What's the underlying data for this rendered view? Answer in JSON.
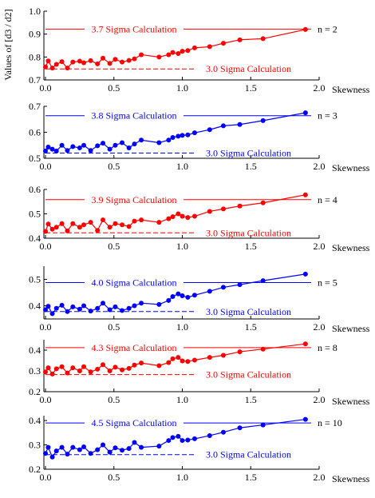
{
  "ylabel": "Values of [d3 / d2]",
  "chart_data": [
    {
      "type": "line",
      "color": "#ff0000",
      "n_label": "n = 2",
      "xlabel": "Skewness",
      "xlim": [
        0,
        2
      ],
      "ylim": [
        0.7,
        1.0
      ],
      "yticks": [
        "1.0",
        "0.9",
        "0.8",
        "0.7"
      ],
      "xticks": [
        "0.0",
        "0.5",
        "1.0",
        "1.5",
        "2.0"
      ],
      "sigma_high": {
        "label": "3.7 Sigma Calculation",
        "value": 0.922
      },
      "sigma_low": {
        "label": "3.0 Sigma Calculation",
        "value": 0.748
      },
      "series": [
        {
          "x": [
            0.0,
            0.02,
            0.05,
            0.08,
            0.12,
            0.16,
            0.2,
            0.25,
            0.28,
            0.33,
            0.38,
            0.42,
            0.47,
            0.51,
            0.56,
            0.61,
            0.65,
            0.7,
            0.83,
            0.9,
            0.93,
            0.97,
            1.0,
            1.04,
            1.09,
            1.2,
            1.3,
            1.42,
            1.59,
            1.9
          ],
          "y": [
            0.757,
            0.783,
            0.752,
            0.768,
            0.78,
            0.752,
            0.778,
            0.782,
            0.775,
            0.784,
            0.77,
            0.795,
            0.772,
            0.79,
            0.778,
            0.785,
            0.792,
            0.81,
            0.8,
            0.81,
            0.82,
            0.815,
            0.825,
            0.828,
            0.84,
            0.845,
            0.86,
            0.875,
            0.88,
            0.92
          ]
        }
      ]
    },
    {
      "type": "line",
      "color": "#0000ff",
      "n_label": "n = 3",
      "xlabel": "Skewness",
      "xlim": [
        0,
        2
      ],
      "ylim": [
        0.5,
        0.7
      ],
      "yticks": [
        "0.7",
        "0.6",
        "0.5"
      ],
      "xticks": [
        "0.0",
        "0.5",
        "1.0",
        "1.5",
        "2.0"
      ],
      "sigma_high": {
        "label": "3.8 Sigma Calculation",
        "value": 0.664
      },
      "sigma_low": {
        "label": "3.0 Sigma Calculation",
        "value": 0.52
      },
      "series": [
        {
          "x": [
            0.0,
            0.02,
            0.05,
            0.08,
            0.12,
            0.16,
            0.2,
            0.25,
            0.28,
            0.33,
            0.38,
            0.42,
            0.47,
            0.51,
            0.56,
            0.61,
            0.65,
            0.7,
            0.83,
            0.9,
            0.93,
            0.97,
            1.0,
            1.04,
            1.09,
            1.2,
            1.3,
            1.42,
            1.59,
            1.9
          ],
          "y": [
            0.528,
            0.543,
            0.535,
            0.528,
            0.55,
            0.53,
            0.545,
            0.54,
            0.55,
            0.53,
            0.548,
            0.558,
            0.535,
            0.55,
            0.56,
            0.54,
            0.555,
            0.57,
            0.56,
            0.57,
            0.58,
            0.585,
            0.588,
            0.59,
            0.598,
            0.61,
            0.625,
            0.63,
            0.645,
            0.675
          ]
        }
      ]
    },
    {
      "type": "line",
      "color": "#ff0000",
      "n_label": "n = 4",
      "xlabel": "Skewness",
      "xlim": [
        0,
        2
      ],
      "ylim": [
        0.4,
        0.6
      ],
      "yticks": [
        "0.6",
        "0.5",
        "0.4"
      ],
      "xticks": [
        "0.0",
        "0.5",
        "1.0",
        "1.5",
        "2.0"
      ],
      "sigma_high": {
        "label": "3.9 Sigma Calculation",
        "value": 0.558
      },
      "sigma_low": {
        "label": "3.0 Sigma Calculation",
        "value": 0.422
      },
      "series": [
        {
          "x": [
            0.0,
            0.02,
            0.05,
            0.08,
            0.12,
            0.16,
            0.2,
            0.25,
            0.28,
            0.33,
            0.38,
            0.42,
            0.47,
            0.51,
            0.56,
            0.61,
            0.65,
            0.7,
            0.83,
            0.9,
            0.93,
            0.97,
            1.0,
            1.04,
            1.09,
            1.2,
            1.3,
            1.42,
            1.59,
            1.9
          ],
          "y": [
            0.428,
            0.458,
            0.437,
            0.445,
            0.46,
            0.43,
            0.46,
            0.445,
            0.455,
            0.465,
            0.432,
            0.475,
            0.445,
            0.46,
            0.455,
            0.448,
            0.47,
            0.475,
            0.465,
            0.48,
            0.488,
            0.5,
            0.49,
            0.485,
            0.49,
            0.51,
            0.52,
            0.532,
            0.545,
            0.578
          ]
        }
      ]
    },
    {
      "type": "line",
      "color": "#0000ff",
      "n_label": "n = 5",
      "xlabel": "Skewness",
      "xlim": [
        0,
        2
      ],
      "ylim": [
        0.35,
        0.55
      ],
      "yticks": [
        "0.5",
        "0.4"
      ],
      "ytick_values": [
        0.5,
        0.4
      ],
      "xticks": [
        "0.0",
        "0.5",
        "1.0",
        "1.5",
        "2.0"
      ],
      "sigma_high": {
        "label": "4.0 Sigma Calculation",
        "value": 0.488
      },
      "sigma_low": {
        "label": "3.0 Sigma Calculation",
        "value": 0.378
      },
      "series": [
        {
          "x": [
            0.0,
            0.02,
            0.05,
            0.08,
            0.12,
            0.16,
            0.2,
            0.25,
            0.28,
            0.33,
            0.38,
            0.42,
            0.47,
            0.51,
            0.56,
            0.61,
            0.65,
            0.7,
            0.83,
            0.9,
            0.93,
            0.97,
            1.0,
            1.04,
            1.09,
            1.2,
            1.3,
            1.42,
            1.59,
            1.9
          ],
          "y": [
            0.385,
            0.398,
            0.37,
            0.39,
            0.402,
            0.378,
            0.396,
            0.387,
            0.4,
            0.38,
            0.39,
            0.41,
            0.385,
            0.396,
            0.382,
            0.39,
            0.4,
            0.41,
            0.405,
            0.42,
            0.435,
            0.445,
            0.438,
            0.432,
            0.44,
            0.455,
            0.47,
            0.48,
            0.495,
            0.52
          ]
        }
      ]
    },
    {
      "type": "line",
      "color": "#ff0000",
      "n_label": "n = 8",
      "xlabel": "Skewness",
      "xlim": [
        0,
        2
      ],
      "ylim": [
        0.2,
        0.45
      ],
      "yticks": [
        "0.4",
        "0.3",
        "0.2"
      ],
      "ytick_values": [
        0.4,
        0.3,
        0.2
      ],
      "xticks": [
        "0.0",
        "0.5",
        "1.0",
        "1.5",
        "2.0"
      ],
      "sigma_high": {
        "label": "4.3 Sigma Calculation",
        "value": 0.412
      },
      "sigma_low": {
        "label": "3.0 Sigma Calculation",
        "value": 0.282
      },
      "series": [
        {
          "x": [
            0.0,
            0.02,
            0.05,
            0.08,
            0.12,
            0.16,
            0.2,
            0.25,
            0.28,
            0.33,
            0.38,
            0.42,
            0.47,
            0.51,
            0.56,
            0.61,
            0.65,
            0.7,
            0.83,
            0.9,
            0.93,
            0.97,
            1.0,
            1.04,
            1.09,
            1.2,
            1.3,
            1.42,
            1.59,
            1.9
          ],
          "y": [
            0.295,
            0.315,
            0.285,
            0.31,
            0.32,
            0.29,
            0.315,
            0.3,
            0.32,
            0.295,
            0.308,
            0.33,
            0.3,
            0.318,
            0.305,
            0.312,
            0.328,
            0.338,
            0.325,
            0.34,
            0.358,
            0.365,
            0.348,
            0.345,
            0.352,
            0.365,
            0.375,
            0.392,
            0.405,
            0.43
          ]
        }
      ]
    },
    {
      "type": "line",
      "color": "#0000ff",
      "n_label": "n = 10",
      "xlabel": "Skewness",
      "xlim": [
        0,
        2
      ],
      "ylim": [
        0.2,
        0.42
      ],
      "yticks": [
        "0.4",
        "0.3",
        "0.2"
      ],
      "ytick_values": [
        0.4,
        0.3,
        0.2
      ],
      "xticks": [
        "0.0",
        "0.5",
        "1.0",
        "1.5",
        "2.0"
      ],
      "sigma_high": {
        "label": "4.5 Sigma Calculation",
        "value": 0.39
      },
      "sigma_low": {
        "label": "3.0 Sigma Calculation",
        "value": 0.26
      },
      "series": [
        {
          "x": [
            0.0,
            0.02,
            0.05,
            0.08,
            0.12,
            0.16,
            0.2,
            0.25,
            0.28,
            0.33,
            0.38,
            0.42,
            0.47,
            0.51,
            0.56,
            0.61,
            0.65,
            0.7,
            0.83,
            0.9,
            0.93,
            0.97,
            1.0,
            1.04,
            1.09,
            1.2,
            1.3,
            1.42,
            1.59,
            1.9
          ],
          "y": [
            0.265,
            0.29,
            0.25,
            0.275,
            0.29,
            0.262,
            0.29,
            0.28,
            0.292,
            0.265,
            0.28,
            0.3,
            0.27,
            0.288,
            0.278,
            0.285,
            0.31,
            0.29,
            0.295,
            0.318,
            0.33,
            0.335,
            0.318,
            0.32,
            0.325,
            0.338,
            0.352,
            0.37,
            0.382,
            0.405
          ]
        }
      ]
    }
  ]
}
